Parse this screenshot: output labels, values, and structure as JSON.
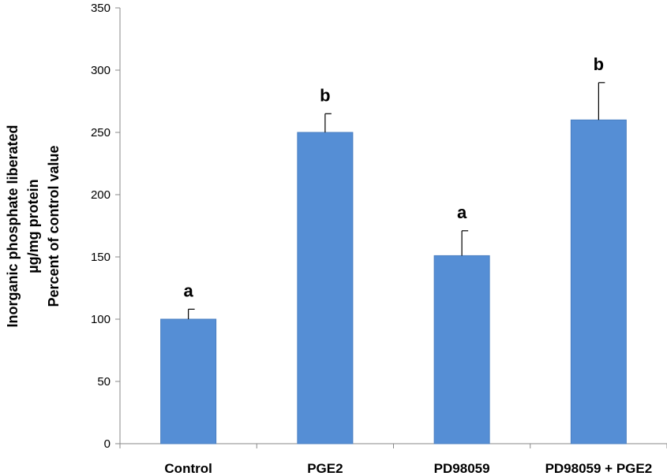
{
  "chart_data": {
    "type": "bar",
    "categories": [
      "Control",
      "PGE2",
      "PD98059",
      "PD98059  + PGE2"
    ],
    "values": [
      100,
      250,
      151,
      260
    ],
    "error": [
      8,
      15,
      20,
      30
    ],
    "annotations": [
      "a",
      "b",
      "a",
      "b"
    ],
    "ylabel_lines": [
      "Inorganic phosphate liberated",
      "µg/mg protein",
      "Percent of control value"
    ],
    "ylim": [
      0,
      350
    ],
    "yticks": [
      0,
      50,
      100,
      150,
      200,
      250,
      300,
      350
    ],
    "grid": false,
    "bar_color": "#558ED5"
  }
}
